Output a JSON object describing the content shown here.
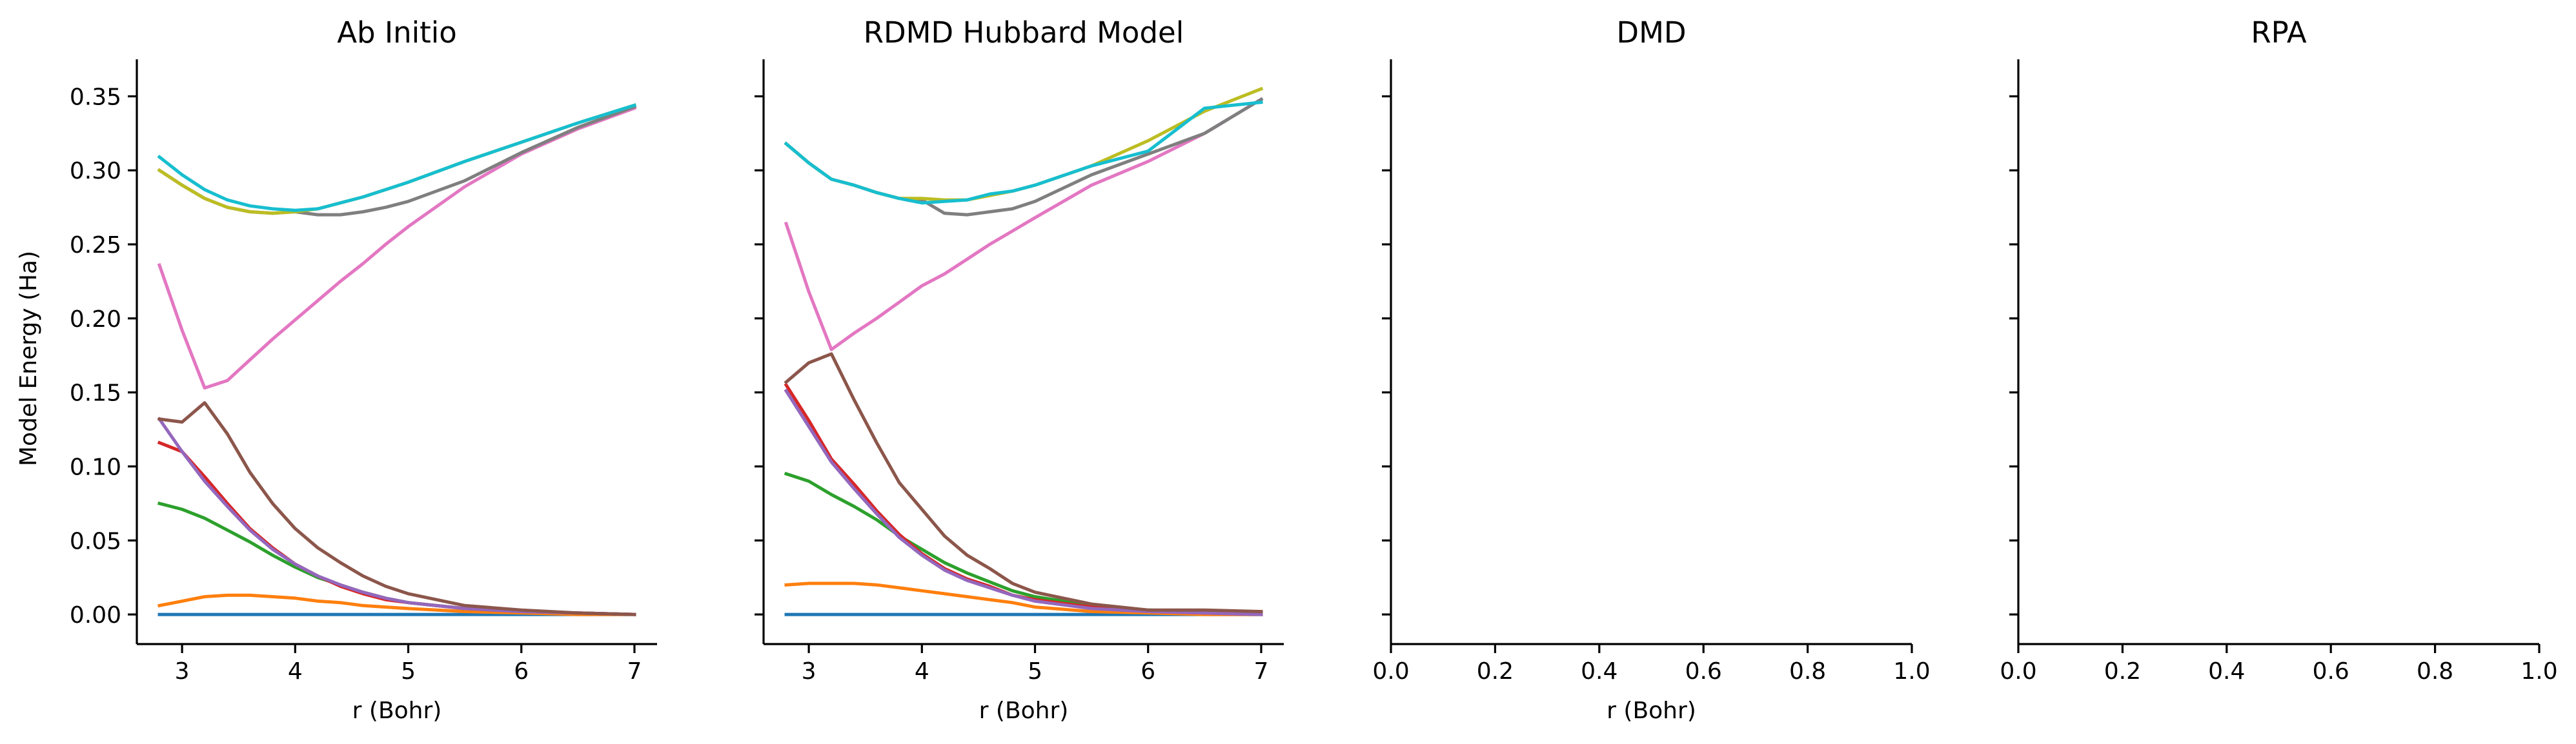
{
  "ylabel": "Model Energy (Ha)",
  "series_colors": [
    "#1f77b4",
    "#ff7f0e",
    "#2ca02c",
    "#d62728",
    "#9467bd",
    "#8c564b",
    "#e377c2",
    "#7f7f7f",
    "#bcbd22",
    "#17becf"
  ],
  "chart_data": [
    {
      "type": "line",
      "title": "Ab Initio",
      "xlabel": "r (Bohr)",
      "ylabel": "Model Energy (Ha)",
      "xlim": [
        2.6,
        7.2
      ],
      "ylim": [
        -0.02,
        0.375
      ],
      "xticks": [
        3,
        4,
        5,
        6,
        7
      ],
      "yticks": [
        0.0,
        0.05,
        0.1,
        0.15,
        0.2,
        0.25,
        0.3,
        0.35
      ],
      "show_yticklabels": true,
      "grid": false,
      "legend": "none",
      "series": [
        {
          "x": [
            2.8,
            7.0
          ],
          "y": [
            0.0,
            0.0
          ]
        },
        {
          "x": [
            2.8,
            3.0,
            3.2,
            3.4,
            3.6,
            3.8,
            4.0,
            4.2,
            4.4,
            4.6,
            4.8,
            5.0,
            5.5,
            6.0,
            6.5,
            7.0
          ],
          "y": [
            0.006,
            0.009,
            0.012,
            0.013,
            0.013,
            0.012,
            0.011,
            0.009,
            0.008,
            0.006,
            0.005,
            0.004,
            0.002,
            0.001,
            0.0,
            0.0
          ]
        },
        {
          "x": [
            2.8,
            3.0,
            3.2,
            3.4,
            3.6,
            3.8,
            4.0,
            4.2,
            4.4,
            4.6,
            4.8,
            5.0,
            5.5,
            6.0,
            6.5,
            7.0
          ],
          "y": [
            0.075,
            0.071,
            0.065,
            0.057,
            0.049,
            0.04,
            0.032,
            0.025,
            0.02,
            0.015,
            0.011,
            0.008,
            0.004,
            0.002,
            0.001,
            0.0
          ]
        },
        {
          "x": [
            2.8,
            3.0,
            3.2,
            3.4,
            3.6,
            3.8,
            4.0,
            4.2,
            4.4,
            4.6,
            4.8,
            5.0,
            5.5,
            6.0,
            6.5,
            7.0
          ],
          "y": [
            0.116,
            0.11,
            0.093,
            0.075,
            0.058,
            0.045,
            0.034,
            0.026,
            0.019,
            0.014,
            0.01,
            0.008,
            0.004,
            0.002,
            0.001,
            0.0
          ]
        },
        {
          "x": [
            2.8,
            3.0,
            3.2,
            3.4,
            3.6,
            3.8,
            4.0,
            4.2,
            4.4,
            4.6,
            4.8,
            5.0,
            5.5,
            6.0,
            6.5,
            7.0
          ],
          "y": [
            0.132,
            0.11,
            0.09,
            0.073,
            0.057,
            0.044,
            0.034,
            0.026,
            0.02,
            0.015,
            0.011,
            0.008,
            0.004,
            0.002,
            0.001,
            0.0
          ]
        },
        {
          "x": [
            2.8,
            3.0,
            3.2,
            3.4,
            3.6,
            3.8,
            4.0,
            4.2,
            4.4,
            4.6,
            4.8,
            5.0,
            5.5,
            6.0,
            6.5,
            7.0
          ],
          "y": [
            0.132,
            0.13,
            0.143,
            0.122,
            0.096,
            0.075,
            0.058,
            0.045,
            0.035,
            0.026,
            0.019,
            0.014,
            0.006,
            0.003,
            0.001,
            0.0
          ]
        },
        {
          "x": [
            2.8,
            3.0,
            3.2,
            3.4,
            3.6,
            3.8,
            4.0,
            4.2,
            4.4,
            4.6,
            4.8,
            5.0,
            5.5,
            6.0,
            6.5,
            7.0
          ],
          "y": [
            0.236,
            0.192,
            0.153,
            0.158,
            0.172,
            0.186,
            0.199,
            0.212,
            0.225,
            0.237,
            0.25,
            0.262,
            0.289,
            0.311,
            0.328,
            0.342
          ]
        },
        {
          "x": [
            2.8,
            3.0,
            3.2,
            3.4,
            3.6,
            3.8,
            4.0,
            4.2,
            4.4,
            4.6,
            4.8,
            5.0,
            5.5,
            6.0,
            6.5,
            7.0
          ],
          "y": [
            0.3,
            0.29,
            0.281,
            0.275,
            0.272,
            0.271,
            0.272,
            0.27,
            0.27,
            0.272,
            0.275,
            0.279,
            0.293,
            0.312,
            0.329,
            0.343
          ]
        },
        {
          "x": [
            2.8,
            3.0,
            3.2,
            3.4,
            3.6,
            3.8,
            4.0,
            4.2,
            4.4,
            4.6,
            4.8,
            5.0,
            5.5,
            6.0,
            6.5,
            7.0
          ],
          "y": [
            0.3,
            0.29,
            0.281,
            0.275,
            0.272,
            0.271,
            0.272,
            0.274,
            0.278,
            0.282,
            0.287,
            0.292,
            0.306,
            0.319,
            0.332,
            0.344
          ]
        },
        {
          "x": [
            2.8,
            3.0,
            3.2,
            3.4,
            3.6,
            3.8,
            4.0,
            4.2,
            4.4,
            4.6,
            4.8,
            5.0,
            5.5,
            6.0,
            6.5,
            7.0
          ],
          "y": [
            0.309,
            0.297,
            0.287,
            0.28,
            0.276,
            0.274,
            0.273,
            0.274,
            0.278,
            0.282,
            0.287,
            0.292,
            0.306,
            0.319,
            0.332,
            0.344
          ]
        }
      ]
    },
    {
      "type": "line",
      "title": "RDMD Hubbard Model",
      "xlabel": "r (Bohr)",
      "ylabel": "",
      "xlim": [
        2.6,
        7.2
      ],
      "ylim": [
        -0.02,
        0.375
      ],
      "xticks": [
        3,
        4,
        5,
        6,
        7
      ],
      "yticks": [
        0.0,
        0.05,
        0.1,
        0.15,
        0.2,
        0.25,
        0.3,
        0.35
      ],
      "show_yticklabels": false,
      "grid": false,
      "legend": "none",
      "series": [
        {
          "x": [
            2.8,
            7.0
          ],
          "y": [
            0.0,
            0.0
          ]
        },
        {
          "x": [
            2.8,
            3.0,
            3.2,
            3.4,
            3.6,
            3.8,
            4.0,
            4.2,
            4.4,
            4.6,
            4.8,
            5.0,
            5.5,
            6.0,
            6.5,
            7.0
          ],
          "y": [
            0.02,
            0.021,
            0.021,
            0.021,
            0.02,
            0.018,
            0.016,
            0.014,
            0.012,
            0.01,
            0.008,
            0.005,
            0.002,
            0.001,
            0.0,
            0.0
          ]
        },
        {
          "x": [
            2.8,
            3.0,
            3.2,
            3.4,
            3.6,
            3.8,
            4.0,
            4.2,
            4.4,
            4.6,
            4.8,
            5.0,
            5.5,
            6.0,
            6.5,
            7.0
          ],
          "y": [
            0.095,
            0.09,
            0.081,
            0.073,
            0.064,
            0.053,
            0.044,
            0.035,
            0.028,
            0.022,
            0.016,
            0.012,
            0.006,
            0.003,
            0.002,
            0.001
          ]
        },
        {
          "x": [
            2.8,
            3.0,
            3.2,
            3.4,
            3.6,
            3.8,
            4.0,
            4.2,
            4.4,
            4.6,
            4.8,
            5.0,
            5.5,
            6.0,
            6.5,
            7.0
          ],
          "y": [
            0.155,
            0.131,
            0.105,
            0.088,
            0.07,
            0.054,
            0.041,
            0.031,
            0.024,
            0.019,
            0.013,
            0.01,
            0.005,
            0.002,
            0.001,
            0.0
          ]
        },
        {
          "x": [
            2.8,
            3.0,
            3.2,
            3.4,
            3.6,
            3.8,
            4.0,
            4.2,
            4.4,
            4.6,
            4.8,
            5.0,
            5.5,
            6.0,
            6.5,
            7.0
          ],
          "y": [
            0.151,
            0.127,
            0.103,
            0.085,
            0.068,
            0.052,
            0.04,
            0.03,
            0.023,
            0.018,
            0.013,
            0.009,
            0.004,
            0.002,
            0.001,
            0.0
          ]
        },
        {
          "x": [
            2.8,
            3.0,
            3.2,
            3.4,
            3.6,
            3.8,
            4.0,
            4.2,
            4.4,
            4.6,
            4.8,
            5.0,
            5.5,
            6.0,
            6.5,
            7.0
          ],
          "y": [
            0.157,
            0.17,
            0.176,
            0.145,
            0.116,
            0.089,
            0.071,
            0.053,
            0.04,
            0.031,
            0.021,
            0.015,
            0.007,
            0.003,
            0.003,
            0.002
          ]
        },
        {
          "x": [
            2.8,
            3.0,
            3.2,
            3.4,
            3.6,
            3.8,
            4.0,
            4.2,
            4.4,
            4.6,
            4.8,
            5.0,
            5.5,
            6.0,
            6.5,
            7.0
          ],
          "y": [
            0.264,
            0.218,
            0.179,
            0.19,
            0.2,
            0.211,
            0.222,
            0.23,
            0.24,
            0.25,
            0.259,
            0.268,
            0.29,
            0.306,
            0.325,
            0.348
          ]
        },
        {
          "x": [
            2.8,
            3.0,
            3.2,
            3.4,
            3.6,
            3.8,
            4.0,
            4.2,
            4.4,
            4.6,
            4.8,
            5.0,
            5.5,
            6.0,
            6.5,
            7.0
          ],
          "y": [
            0.318,
            0.305,
            0.294,
            0.29,
            0.285,
            0.281,
            0.28,
            0.271,
            0.27,
            0.272,
            0.274,
            0.279,
            0.297,
            0.311,
            0.325,
            0.348
          ]
        },
        {
          "x": [
            2.8,
            3.0,
            3.2,
            3.4,
            3.6,
            3.8,
            4.0,
            4.2,
            4.4,
            4.6,
            4.8,
            5.0,
            5.5,
            6.0,
            6.5,
            7.0
          ],
          "y": [
            0.318,
            0.305,
            0.294,
            0.29,
            0.285,
            0.281,
            0.281,
            0.28,
            0.28,
            0.283,
            0.286,
            0.29,
            0.303,
            0.32,
            0.34,
            0.355
          ]
        },
        {
          "x": [
            2.8,
            3.0,
            3.2,
            3.4,
            3.6,
            3.8,
            4.0,
            4.2,
            4.4,
            4.6,
            4.8,
            5.0,
            5.5,
            6.0,
            6.5,
            7.0
          ],
          "y": [
            0.318,
            0.305,
            0.294,
            0.29,
            0.285,
            0.281,
            0.278,
            0.279,
            0.28,
            0.284,
            0.286,
            0.29,
            0.303,
            0.313,
            0.342,
            0.346
          ]
        }
      ]
    },
    {
      "type": "line",
      "title": "DMD",
      "xlabel": "r (Bohr)",
      "ylabel": "",
      "xlim": [
        0.0,
        1.0
      ],
      "ylim": [
        -0.02,
        0.375
      ],
      "xticks": [
        0.0,
        0.2,
        0.4,
        0.6,
        0.8,
        1.0
      ],
      "xtick_labels": [
        "0.0",
        "0.2",
        "0.4",
        "0.6",
        "0.8",
        "1.0"
      ],
      "yticks": [
        0.0,
        0.05,
        0.1,
        0.15,
        0.2,
        0.25,
        0.3,
        0.35
      ],
      "show_yticklabels": false,
      "grid": false,
      "legend": "none",
      "series": []
    },
    {
      "type": "line",
      "title": "RPA",
      "xlabel": "",
      "ylabel": "",
      "xlim": [
        0.0,
        1.0
      ],
      "ylim": [
        -0.02,
        0.375
      ],
      "xticks": [
        0.0,
        0.2,
        0.4,
        0.6,
        0.8,
        1.0
      ],
      "xtick_labels": [
        "0.0",
        "0.2",
        "0.4",
        "0.6",
        "0.8",
        "1.0"
      ],
      "yticks": [
        0.0,
        0.05,
        0.1,
        0.15,
        0.2,
        0.25,
        0.3,
        0.35
      ],
      "show_yticklabels": false,
      "grid": false,
      "legend": "none",
      "series": []
    }
  ]
}
